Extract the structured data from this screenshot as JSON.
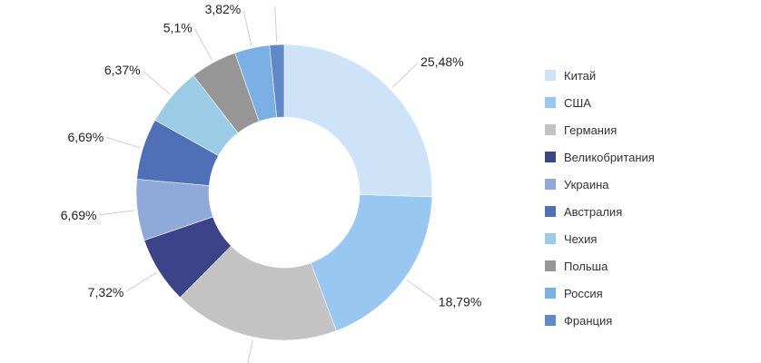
{
  "chart_data": {
    "type": "donut",
    "title": "",
    "categories": [
      "Китай",
      "США",
      "Германия",
      "Великобритания",
      "Украина",
      "Австралия",
      "Чехия",
      "Польша",
      "Россия",
      "Франция"
    ],
    "values": [
      25.48,
      18.79,
      18.15,
      7.32,
      6.69,
      6.69,
      6.37,
      5.1,
      3.82,
      1.59
    ],
    "labels": [
      "25,48%",
      "18,79%",
      "",
      "7,32%",
      "6,69%",
      "6,69%",
      "6,37%",
      "5,1%",
      "3,82%",
      ""
    ],
    "colors": [
      "#cfe3f8",
      "#98c7f1",
      "#c3c3c3",
      "#3b4389",
      "#8faad9",
      "#4f6fb6",
      "#9ccbe5",
      "#969696",
      "#7bb0e4",
      "#5f89c9"
    ],
    "legend_position": "right",
    "start_angle_deg": 0,
    "direction": "clockwise"
  }
}
